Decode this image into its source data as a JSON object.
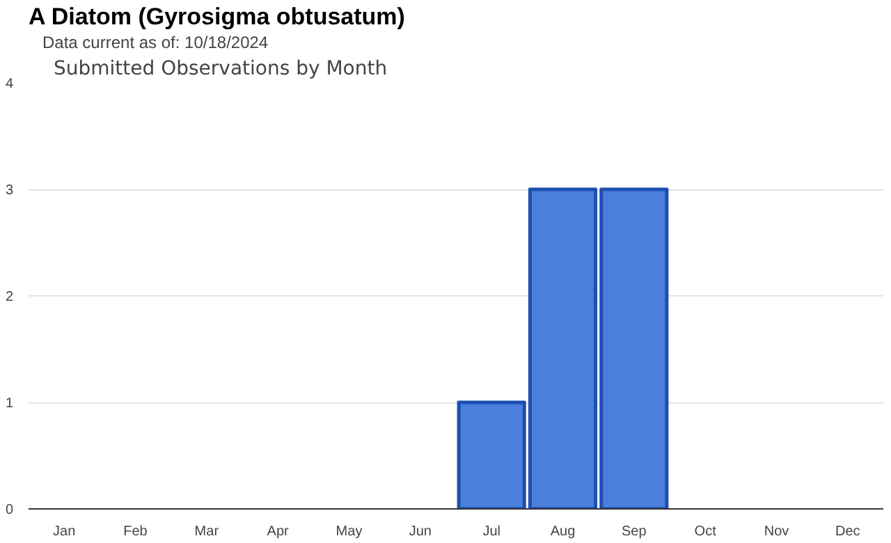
{
  "chart_data": {
    "type": "bar",
    "title": "A Diatom   (Gyrosigma obtusatum)",
    "subtitle": "Data current as of: 10/18/2024",
    "annotations": [
      "Submitted Observations by Month"
    ],
    "categories": [
      "Jan",
      "Feb",
      "Mar",
      "Apr",
      "May",
      "Jun",
      "Jul",
      "Aug",
      "Sep",
      "Oct",
      "Nov",
      "Dec"
    ],
    "values": [
      0,
      0,
      0,
      0,
      0,
      0,
      1,
      3,
      3,
      0,
      0,
      0
    ],
    "color": "#4a7fdc",
    "ylim": [
      0,
      4
    ],
    "yticks": [
      0,
      1,
      2,
      3,
      4
    ],
    "grid": "y"
  }
}
